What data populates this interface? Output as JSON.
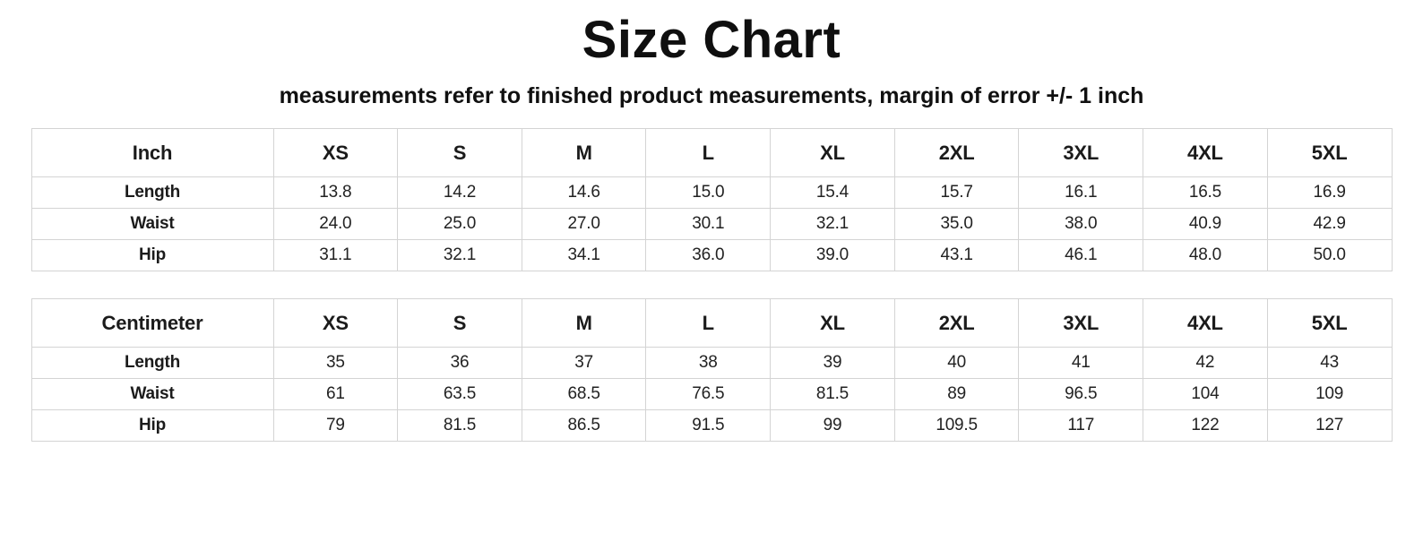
{
  "title": "Size Chart",
  "subtitle": "measurements refer to finished product measurements, margin of error +/- 1 inch",
  "chart_data": [
    {
      "type": "table",
      "unit_label": "Inch",
      "size_labels": [
        "XS",
        "S",
        "M",
        "L",
        "XL",
        "2XL",
        "3XL",
        "4XL",
        "5XL"
      ],
      "rows": [
        {
          "label": "Length",
          "values": [
            "13.8",
            "14.2",
            "14.6",
            "15.0",
            "15.4",
            "15.7",
            "16.1",
            "16.5",
            "16.9"
          ]
        },
        {
          "label": "Waist",
          "values": [
            "24.0",
            "25.0",
            "27.0",
            "30.1",
            "32.1",
            "35.0",
            "38.0",
            "40.9",
            "42.9"
          ]
        },
        {
          "label": "Hip",
          "values": [
            "31.1",
            "32.1",
            "34.1",
            "36.0",
            "39.0",
            "43.1",
            "46.1",
            "48.0",
            "50.0"
          ]
        }
      ]
    },
    {
      "type": "table",
      "unit_label": "Centimeter",
      "size_labels": [
        "XS",
        "S",
        "M",
        "L",
        "XL",
        "2XL",
        "3XL",
        "4XL",
        "5XL"
      ],
      "rows": [
        {
          "label": "Length",
          "values": [
            "35",
            "36",
            "37",
            "38",
            "39",
            "40",
            "41",
            "42",
            "43"
          ]
        },
        {
          "label": "Waist",
          "values": [
            "61",
            "63.5",
            "68.5",
            "76.5",
            "81.5",
            "89",
            "96.5",
            "104",
            "109"
          ]
        },
        {
          "label": "Hip",
          "values": [
            "79",
            "81.5",
            "86.5",
            "91.5",
            "99",
            "109.5",
            "117",
            "122",
            "127"
          ]
        }
      ]
    }
  ]
}
